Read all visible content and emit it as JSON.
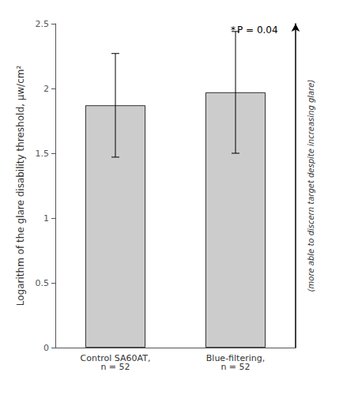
{
  "chart_data": {
    "type": "bar",
    "categories": [
      "Control SA60AT,\nn = 52",
      "Blue-filtering,\nn = 52"
    ],
    "values": [
      1.87,
      1.97
    ],
    "errors": [
      0.4,
      0.47
    ],
    "color": "#cccccc",
    "ylabel": "Logarithm of the glare disability threshold, μw/cm²",
    "y2label": "(more able to discern target despite increasing glare)",
    "annotations": [
      "*",
      "P = 0.04"
    ],
    "ylim": [
      0,
      2.5
    ],
    "yticks": [
      0,
      0.5,
      1,
      1.5,
      2,
      2.5
    ],
    "grid": false
  }
}
